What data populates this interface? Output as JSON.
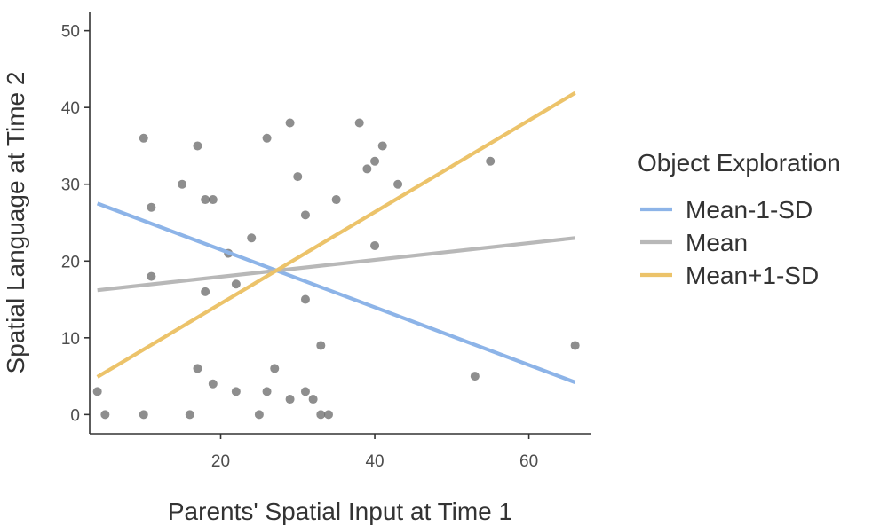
{
  "chart_data": {
    "type": "scatter",
    "xlabel": "Parents' Spatial Input at Time 1",
    "ylabel": "Spatial Language at Time 2",
    "xlim": [
      3,
      68
    ],
    "ylim": [
      -2.5,
      52.5
    ],
    "x_ticks": [
      20,
      40,
      60
    ],
    "y_ticks": [
      0,
      10,
      20,
      30,
      40,
      50
    ],
    "grid": false,
    "legend": {
      "title": "Object Exploration",
      "position": "right"
    },
    "points": [
      {
        "x": 4,
        "y": 3
      },
      {
        "x": 5,
        "y": 0
      },
      {
        "x": 10,
        "y": 0
      },
      {
        "x": 10,
        "y": 36
      },
      {
        "x": 11,
        "y": 27
      },
      {
        "x": 11,
        "y": 18
      },
      {
        "x": 15,
        "y": 30
      },
      {
        "x": 16,
        "y": 0
      },
      {
        "x": 17,
        "y": 35
      },
      {
        "x": 17,
        "y": 6
      },
      {
        "x": 18,
        "y": 28
      },
      {
        "x": 18,
        "y": 16
      },
      {
        "x": 19,
        "y": 28
      },
      {
        "x": 19,
        "y": 4
      },
      {
        "x": 21,
        "y": 21
      },
      {
        "x": 22,
        "y": 17
      },
      {
        "x": 22,
        "y": 3
      },
      {
        "x": 24,
        "y": 23
      },
      {
        "x": 25,
        "y": 0
      },
      {
        "x": 26,
        "y": 36
      },
      {
        "x": 26,
        "y": 3
      },
      {
        "x": 27,
        "y": 6
      },
      {
        "x": 29,
        "y": 38
      },
      {
        "x": 29,
        "y": 2
      },
      {
        "x": 30,
        "y": 31
      },
      {
        "x": 31,
        "y": 26
      },
      {
        "x": 31,
        "y": 15
      },
      {
        "x": 31,
        "y": 3
      },
      {
        "x": 32,
        "y": 2
      },
      {
        "x": 33,
        "y": 9
      },
      {
        "x": 33,
        "y": 0
      },
      {
        "x": 34,
        "y": 0
      },
      {
        "x": 35,
        "y": 28
      },
      {
        "x": 38,
        "y": 38
      },
      {
        "x": 39,
        "y": 32
      },
      {
        "x": 40,
        "y": 33
      },
      {
        "x": 40,
        "y": 22
      },
      {
        "x": 41,
        "y": 35
      },
      {
        "x": 43,
        "y": 30
      },
      {
        "x": 53,
        "y": 5
      },
      {
        "x": 55,
        "y": 33
      },
      {
        "x": 66,
        "y": 9
      }
    ],
    "series": [
      {
        "name": "Mean-1-SD",
        "color": "#8db4e8",
        "x": [
          4,
          66
        ],
        "y": [
          27.5,
          4.2
        ]
      },
      {
        "name": "Mean",
        "color": "#b8b8b8",
        "x": [
          4,
          66
        ],
        "y": [
          16.2,
          23.0
        ]
      },
      {
        "name": "Mean+1-SD",
        "color": "#ecc36a",
        "x": [
          4,
          66
        ],
        "y": [
          4.9,
          41.9
        ]
      }
    ],
    "point_color": "#6e6e6e"
  }
}
